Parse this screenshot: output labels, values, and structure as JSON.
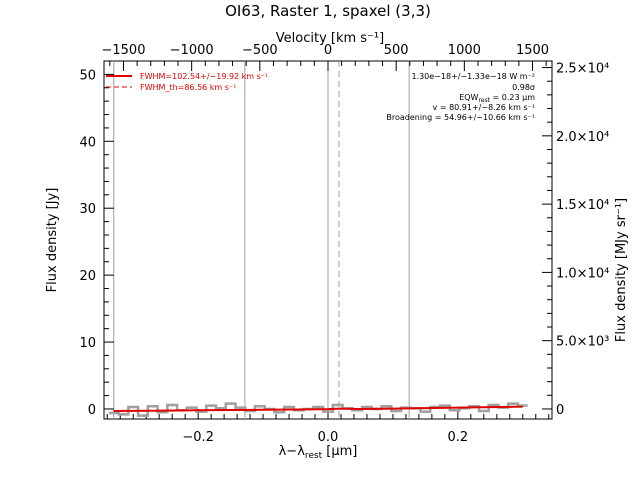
{
  "title": "OI63, Raster 1, spaxel (3,3)",
  "top_axis_label": "Velocity [km s⁻¹]",
  "left_axis_label": "Flux density [Jy]",
  "right_axis_label": "Flux density [MJy sr⁻¹]",
  "bottom_axis_label": "λ−λ",
  "bottom_axis_label_sub": "rest",
  "bottom_axis_label_unit": " [μm]",
  "legend": {
    "fit_label": "FWHM=102.54+/−19.92 km s⁻¹",
    "theory_label": "FWHM_th=86.56 km s⁻¹",
    "fit_color": "#e00000"
  },
  "annotations": {
    "line_flux": "1.30e−18+/−1.33e−18 W m⁻²",
    "significance": "0.98σ",
    "eqw": "EQW",
    "eqw_sub": "rest",
    "eqw_value": " = 0.23 μm",
    "velocity": "v = 80.91+/−8.26 km s⁻¹",
    "broadening": "Broadening = 54.96+/−10.66 km s⁻¹"
  },
  "chart_data": {
    "type": "line",
    "x_range": [
      -0.345,
      0.345
    ],
    "y_range": [
      -1.5,
      52
    ],
    "bottom_ticks": [
      -0.2,
      0.0,
      0.2
    ],
    "bottom_tick_labels": [
      "−0.2",
      "0.0",
      "0.2"
    ],
    "left_ticks": [
      0,
      10,
      20,
      30,
      40,
      50
    ],
    "left_tick_labels": [
      "0",
      "10",
      "20",
      "30",
      "40",
      "50"
    ],
    "top_ticks_kms": [
      -1500,
      -1000,
      -500,
      0,
      500,
      1000,
      1500
    ],
    "top_tick_labels": [
      "−1500",
      "−1000",
      "−500",
      "0",
      "500",
      "1000",
      "1500"
    ],
    "right_ticks_mjysr": [
      0,
      5000,
      10000,
      15000,
      20000,
      25000
    ],
    "right_tick_labels": [
      "0",
      "5.0×10³",
      "1.0×10⁴",
      "1.5×10⁴",
      "2.0×10⁴",
      "2.5×10⁴"
    ],
    "mjysr_per_jy": 490,
    "um_per_kms": 0.00021,
    "vertical_markers_um": [
      -0.33,
      -0.128,
      0.0,
      0.125
    ],
    "dashed_marker_um": 0.017,
    "series": [
      {
        "name": "data",
        "color": "#a0a0a0",
        "x": [
          -0.33,
          -0.315,
          -0.3,
          -0.285,
          -0.27,
          -0.255,
          -0.24,
          -0.225,
          -0.21,
          -0.195,
          -0.18,
          -0.165,
          -0.15,
          -0.135,
          -0.12,
          -0.105,
          -0.09,
          -0.075,
          -0.06,
          -0.045,
          -0.03,
          -0.015,
          0.0,
          0.015,
          0.03,
          0.045,
          0.06,
          0.075,
          0.09,
          0.105,
          0.12,
          0.135,
          0.15,
          0.165,
          0.18,
          0.195,
          0.21,
          0.225,
          0.24,
          0.255,
          0.27,
          0.285,
          0.3
        ],
        "y": [
          -0.6,
          -0.8,
          0.3,
          -1.0,
          0.4,
          -0.5,
          0.6,
          -0.2,
          0.2,
          -0.4,
          0.5,
          0.1,
          0.8,
          0.2,
          -0.3,
          0.4,
          0.0,
          -0.5,
          0.3,
          -0.2,
          0.0,
          0.3,
          -0.4,
          0.6,
          0.1,
          -0.2,
          0.3,
          0.0,
          0.4,
          -0.3,
          0.2,
          0.1,
          -0.4,
          0.3,
          0.5,
          -0.2,
          0.1,
          0.4,
          -0.3,
          0.6,
          0.2,
          0.8,
          0.5
        ]
      },
      {
        "name": "fit",
        "color": "#e00000",
        "x": [
          -0.33,
          -0.3,
          -0.25,
          -0.2,
          -0.15,
          -0.1,
          -0.05,
          0.0,
          0.017,
          0.05,
          0.1,
          0.15,
          0.2,
          0.25,
          0.3
        ],
        "y": [
          -0.3,
          -0.28,
          -0.24,
          -0.2,
          -0.16,
          -0.12,
          -0.08,
          -0.02,
          0.05,
          0.0,
          0.05,
          0.12,
          0.2,
          0.28,
          0.35
        ]
      }
    ]
  }
}
